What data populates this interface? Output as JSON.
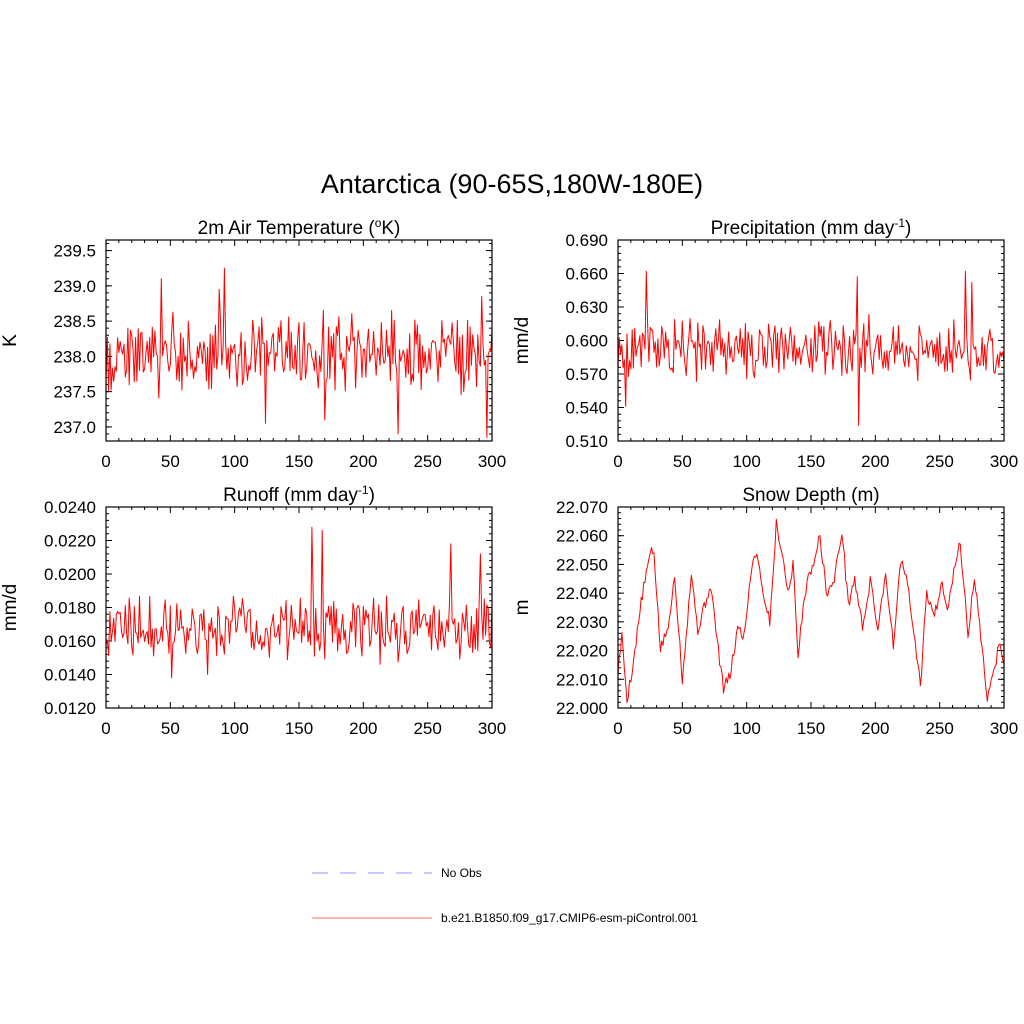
{
  "figure": {
    "title": "Antarctica (90-65S,180W-180E)"
  },
  "colors": {
    "model_line": "#ff0000",
    "obs_line": "#aaaaff",
    "axis": "#000000"
  },
  "chart_data": [
    {
      "type": "line",
      "title": "2m Air Temperature (",
      "title_sup1": "o",
      "title_mid": "K)",
      "ylabel": "K",
      "xlim": [
        0,
        300
      ],
      "ylim": [
        236.8,
        239.65
      ],
      "x_ticks": [
        "0",
        "50",
        "100",
        "150",
        "200",
        "250",
        "300"
      ],
      "y_ticks": [
        "237.0",
        "237.5",
        "238.0",
        "238.5",
        "239.0",
        "239.5"
      ],
      "y_tick_values": [
        237.0,
        237.5,
        238.0,
        238.5,
        239.0,
        239.5
      ],
      "mean": 238.05,
      "amp": 0.32,
      "noise": 0.45,
      "smooth": 0.0,
      "seed": 11,
      "peaks": [
        [
          43,
          239.1
        ],
        [
          92,
          239.25
        ],
        [
          88,
          238.95
        ],
        [
          124,
          237.05
        ],
        [
          170,
          237.1
        ],
        [
          227,
          236.9
        ],
        [
          296,
          236.85
        ],
        [
          292,
          238.85
        ]
      ],
      "series": [
        {
          "name": "b.e21.B1850.f09_g17.CMIP6-esm-piControl.001",
          "x_range": [
            0,
            300
          ]
        }
      ]
    },
    {
      "type": "line",
      "title": "Precipitation (mm day",
      "title_sup1": "-1",
      "title_mid": ")",
      "ylabel": "mm/d",
      "xlim": [
        0,
        300
      ],
      "ylim": [
        0.51,
        0.69
      ],
      "x_ticks": [
        "0",
        "50",
        "100",
        "150",
        "200",
        "250",
        "300"
      ],
      "y_ticks": [
        "0.510",
        "0.540",
        "0.570",
        "0.600",
        "0.630",
        "0.660",
        "0.690"
      ],
      "y_tick_values": [
        0.51,
        0.54,
        0.57,
        0.6,
        0.63,
        0.66,
        0.69
      ],
      "mean": 0.592,
      "amp": 0.012,
      "noise": 0.022,
      "smooth": 0.0,
      "seed": 23,
      "peaks": [
        [
          22,
          0.662
        ],
        [
          6,
          0.541
        ],
        [
          186,
          0.657
        ],
        [
          187,
          0.524
        ],
        [
          270,
          0.662
        ],
        [
          275,
          0.652
        ]
      ],
      "series": [
        {
          "name": "b.e21.B1850.f09_g17.CMIP6-esm-piControl.001",
          "x_range": [
            0,
            300
          ]
        }
      ]
    },
    {
      "type": "line",
      "title": "Runoff (mm day",
      "title_sup1": "-1",
      "title_mid": ")",
      "ylabel": "mm/d",
      "xlim": [
        0,
        300
      ],
      "ylim": [
        0.012,
        0.024
      ],
      "x_ticks": [
        "0",
        "50",
        "100",
        "150",
        "200",
        "250",
        "300"
      ],
      "y_ticks": [
        "0.0120",
        "0.0140",
        "0.0160",
        "0.0180",
        "0.0200",
        "0.0220",
        "0.0240"
      ],
      "y_tick_values": [
        0.012,
        0.014,
        0.016,
        0.018,
        0.02,
        0.022,
        0.024
      ],
      "mean": 0.0168,
      "amp": 0.0007,
      "noise": 0.0016,
      "smooth": 0.0,
      "seed": 37,
      "peaks": [
        [
          160,
          0.0228
        ],
        [
          168,
          0.0226
        ],
        [
          51,
          0.0138
        ],
        [
          79,
          0.014
        ],
        [
          268,
          0.0218
        ],
        [
          291,
          0.0212
        ]
      ],
      "series": [
        {
          "name": "b.e21.B1850.f09_g17.CMIP6-esm-piControl.001",
          "x_range": [
            0,
            300
          ]
        }
      ]
    },
    {
      "type": "line",
      "title": "Snow Depth (m)",
      "title_sup1": "",
      "title_mid": "",
      "ylabel": "m",
      "xlim": [
        0,
        300
      ],
      "ylim": [
        22.0,
        22.07
      ],
      "x_ticks": [
        "0",
        "50",
        "100",
        "150",
        "200",
        "250",
        "300"
      ],
      "y_ticks": [
        "22.000",
        "22.010",
        "22.020",
        "22.030",
        "22.040",
        "22.050",
        "22.060",
        "22.070"
      ],
      "y_tick_values": [
        22.0,
        22.01,
        22.02,
        22.03,
        22.04,
        22.05,
        22.06,
        22.07
      ],
      "mean": 22.035,
      "amp": 0.0,
      "noise": 0.006,
      "smooth": 0.55,
      "seed": 5,
      "anchors": [
        [
          0,
          22.013
        ],
        [
          3,
          22.025
        ],
        [
          7,
          22.003
        ],
        [
          12,
          22.016
        ],
        [
          18,
          22.037
        ],
        [
          25,
          22.054
        ],
        [
          28,
          22.054
        ],
        [
          33,
          22.02
        ],
        [
          40,
          22.03
        ],
        [
          44,
          22.047
        ],
        [
          50,
          22.01
        ],
        [
          57,
          22.047
        ],
        [
          62,
          22.027
        ],
        [
          67,
          22.035
        ],
        [
          72,
          22.043
        ],
        [
          78,
          22.02
        ],
        [
          82,
          22.007
        ],
        [
          87,
          22.011
        ],
        [
          93,
          22.028
        ],
        [
          98,
          22.025
        ],
        [
          104,
          22.05
        ],
        [
          108,
          22.055
        ],
        [
          112,
          22.042
        ],
        [
          118,
          22.03
        ],
        [
          123,
          22.064
        ],
        [
          127,
          22.056
        ],
        [
          132,
          22.04
        ],
        [
          136,
          22.05
        ],
        [
          140,
          22.018
        ],
        [
          145,
          22.04
        ],
        [
          150,
          22.048
        ],
        [
          157,
          22.06
        ],
        [
          162,
          22.04
        ],
        [
          168,
          22.044
        ],
        [
          174,
          22.062
        ],
        [
          179,
          22.036
        ],
        [
          184,
          22.045
        ],
        [
          190,
          22.028
        ],
        [
          196,
          22.044
        ],
        [
          202,
          22.028
        ],
        [
          208,
          22.047
        ],
        [
          214,
          22.022
        ],
        [
          220,
          22.052
        ],
        [
          225,
          22.043
        ],
        [
          231,
          22.022
        ],
        [
          235,
          22.008
        ],
        [
          240,
          22.04
        ],
        [
          246,
          22.032
        ],
        [
          252,
          22.044
        ],
        [
          256,
          22.035
        ],
        [
          260,
          22.045
        ],
        [
          266,
          22.058
        ],
        [
          272,
          22.025
        ],
        [
          277,
          22.046
        ],
        [
          283,
          22.02
        ],
        [
          287,
          22.004
        ],
        [
          292,
          22.012
        ],
        [
          296,
          22.022
        ],
        [
          300,
          22.017
        ]
      ],
      "series": [
        {
          "name": "b.e21.B1850.f09_g17.CMIP6-esm-piControl.001",
          "x_range": [
            0,
            300
          ]
        }
      ]
    }
  ],
  "legend": {
    "items": [
      {
        "label": "No Obs",
        "style": "dashed",
        "color": "#aaaaff"
      },
      {
        "label": "b.e21.B1850.f09_g17.CMIP6-esm-piControl.001",
        "style": "solid",
        "color": "#ff0000"
      }
    ]
  }
}
